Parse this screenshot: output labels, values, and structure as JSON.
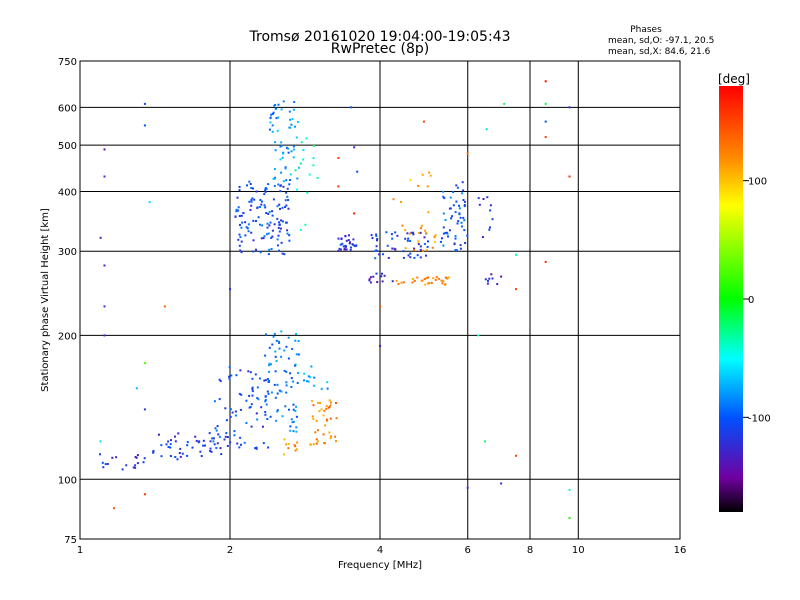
{
  "chart_data": {
    "type": "scatter",
    "title": "Tromsø 20161020 19:04:00-19:05:43",
    "subtitle": "RwPretec (8p)",
    "xlabel": "Frequency [MHz]",
    "ylabel": "Stationary phase Virtual Height [km]",
    "x_scale": "log",
    "y_scale": "log",
    "xlim": [
      1,
      16
    ],
    "ylim": [
      75,
      750
    ],
    "x_ticks": [
      "1",
      "2",
      "4",
      "6",
      "8",
      "10",
      "16"
    ],
    "y_ticks": [
      "75",
      "100",
      "200",
      "300",
      "400",
      "500",
      "600",
      "750"
    ],
    "grid": true,
    "stats": {
      "heading": "Phases",
      "line1": "mean, sd,O: -97.1, 20.5",
      "line2": "mean, sd,X:  84.6, 21.6"
    },
    "colorbar": {
      "label": "[deg]",
      "range": [
        -180,
        180
      ],
      "ticks": [
        "100",
        "0",
        "-100"
      ]
    },
    "clusters": [
      {
        "fmin": 1.05,
        "fmax": 1.35,
        "hmin": 104,
        "hmax": 114,
        "n": 18,
        "phase": -120
      },
      {
        "fmin": 1.4,
        "fmax": 1.95,
        "hmin": 110,
        "hmax": 125,
        "n": 45,
        "phase": -115
      },
      {
        "fmin": 1.85,
        "fmax": 2.4,
        "hmin": 115,
        "hmax": 175,
        "n": 80,
        "phase": -105
      },
      {
        "fmin": 2.35,
        "fmax": 2.75,
        "hmin": 125,
        "hmax": 205,
        "n": 75,
        "phase": -90
      },
      {
        "fmin": 2.55,
        "fmax": 2.75,
        "hmin": 112,
        "hmax": 122,
        "n": 10,
        "phase": 115
      },
      {
        "fmin": 2.9,
        "fmax": 3.3,
        "hmin": 118,
        "hmax": 150,
        "n": 40,
        "phase": 125
      },
      {
        "fmin": 2.8,
        "fmax": 3.2,
        "hmin": 150,
        "hmax": 175,
        "n": 12,
        "phase": -80
      },
      {
        "fmin": 2.05,
        "fmax": 2.65,
        "hmin": 295,
        "hmax": 420,
        "n": 130,
        "phase": -105
      },
      {
        "fmin": 2.4,
        "fmax": 2.75,
        "hmin": 420,
        "hmax": 620,
        "n": 60,
        "phase": -80
      },
      {
        "fmin": 2.7,
        "fmax": 3.0,
        "hmin": 330,
        "hmax": 520,
        "n": 15,
        "phase": -40
      },
      {
        "fmin": 3.3,
        "fmax": 3.6,
        "hmin": 300,
        "hmax": 325,
        "n": 30,
        "phase": -120
      },
      {
        "fmin": 3.8,
        "fmax": 5.0,
        "hmin": 290,
        "hmax": 330,
        "n": 50,
        "phase": -110
      },
      {
        "fmin": 4.4,
        "fmax": 5.2,
        "hmin": 300,
        "hmax": 340,
        "n": 18,
        "phase": 115
      },
      {
        "fmin": 3.8,
        "fmax": 4.3,
        "hmin": 255,
        "hmax": 275,
        "n": 12,
        "phase": -125
      },
      {
        "fmin": 4.3,
        "fmax": 5.6,
        "hmin": 255,
        "hmax": 265,
        "n": 30,
        "phase": 120
      },
      {
        "fmin": 5.3,
        "fmax": 6.0,
        "hmin": 300,
        "hmax": 420,
        "n": 55,
        "phase": -100
      },
      {
        "fmin": 6.3,
        "fmax": 6.8,
        "hmin": 300,
        "hmax": 390,
        "n": 10,
        "phase": -120
      },
      {
        "fmin": 6.5,
        "fmax": 7.0,
        "hmin": 255,
        "hmax": 275,
        "n": 8,
        "phase": -125
      },
      {
        "fmin": 4.2,
        "fmax": 5.3,
        "hmin": 330,
        "hmax": 440,
        "n": 10,
        "phase": 105
      }
    ],
    "scattered_points": [
      {
        "f": 1.12,
        "h": 490,
        "phase": -140
      },
      {
        "f": 1.12,
        "h": 430,
        "phase": -120
      },
      {
        "f": 1.1,
        "h": 320,
        "phase": -130
      },
      {
        "f": 1.12,
        "h": 280,
        "phase": -125
      },
      {
        "f": 1.12,
        "h": 230,
        "phase": -120
      },
      {
        "f": 1.12,
        "h": 200,
        "phase": -130
      },
      {
        "f": 1.35,
        "h": 610,
        "phase": -110
      },
      {
        "f": 1.35,
        "h": 550,
        "phase": -100
      },
      {
        "f": 1.38,
        "h": 380,
        "phase": -60
      },
      {
        "f": 1.48,
        "h": 230,
        "phase": 140
      },
      {
        "f": 1.35,
        "h": 175,
        "phase": 20
      },
      {
        "f": 1.3,
        "h": 155,
        "phase": -70
      },
      {
        "f": 1.35,
        "h": 140,
        "phase": -120
      },
      {
        "f": 1.1,
        "h": 120,
        "phase": -60
      },
      {
        "f": 1.35,
        "h": 93,
        "phase": 160
      },
      {
        "f": 1.17,
        "h": 87,
        "phase": 140
      },
      {
        "f": 2.0,
        "h": 250,
        "phase": -120
      },
      {
        "f": 3.5,
        "h": 600,
        "phase": -100
      },
      {
        "f": 3.55,
        "h": 495,
        "phase": -130
      },
      {
        "f": 3.3,
        "h": 470,
        "phase": 150
      },
      {
        "f": 3.6,
        "h": 440,
        "phase": -110
      },
      {
        "f": 3.55,
        "h": 360,
        "phase": 170
      },
      {
        "f": 4.0,
        "h": 190,
        "phase": -130
      },
      {
        "f": 4.0,
        "h": 230,
        "phase": 140
      },
      {
        "f": 4.9,
        "h": 560,
        "phase": 150
      },
      {
        "f": 6.0,
        "h": 480,
        "phase": 130
      },
      {
        "f": 6.55,
        "h": 540,
        "phase": -60
      },
      {
        "f": 7.1,
        "h": 610,
        "phase": -20
      },
      {
        "f": 7.5,
        "h": 295,
        "phase": -30
      },
      {
        "f": 7.5,
        "h": 250,
        "phase": 150
      },
      {
        "f": 6.5,
        "h": 120,
        "phase": -20
      },
      {
        "f": 6.0,
        "h": 96,
        "phase": -120
      },
      {
        "f": 7.0,
        "h": 98,
        "phase": -120
      },
      {
        "f": 7.5,
        "h": 112,
        "phase": 150
      },
      {
        "f": 8.6,
        "h": 680,
        "phase": 175
      },
      {
        "f": 8.6,
        "h": 610,
        "phase": -10
      },
      {
        "f": 8.6,
        "h": 560,
        "phase": -100
      },
      {
        "f": 8.6,
        "h": 520,
        "phase": 150
      },
      {
        "f": 8.6,
        "h": 285,
        "phase": 160
      },
      {
        "f": 9.6,
        "h": 600,
        "phase": -120
      },
      {
        "f": 9.6,
        "h": 430,
        "phase": 160
      },
      {
        "f": 9.6,
        "h": 95,
        "phase": -40
      },
      {
        "f": 9.6,
        "h": 83,
        "phase": 10
      },
      {
        "f": 6.3,
        "h": 200,
        "phase": -40
      },
      {
        "f": 3.3,
        "h": 410,
        "phase": 160
      }
    ]
  }
}
